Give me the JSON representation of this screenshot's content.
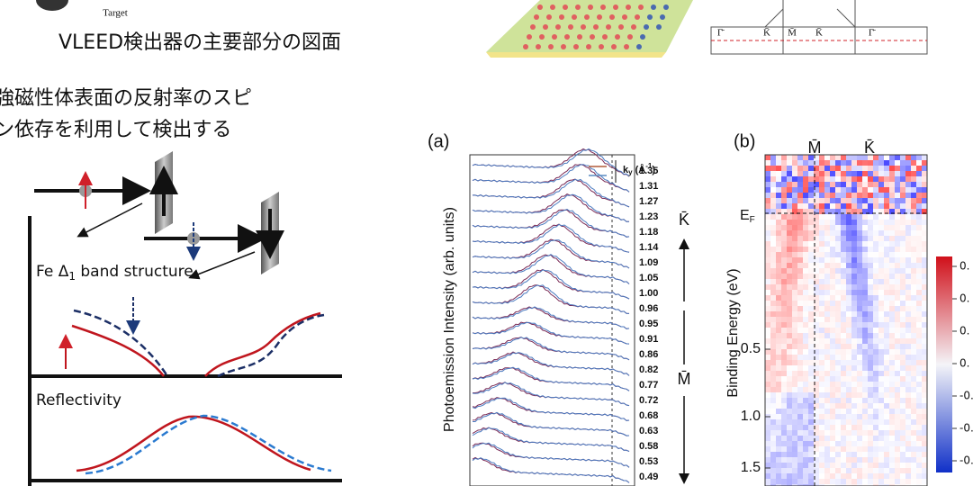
{
  "left": {
    "target_label": "Target",
    "caption": "VLEED検出器の主要部分の図面",
    "description": [
      "強磁性体表面の反射率のスピ",
      "ン依存を利用して検出する"
    ],
    "band_label": {
      "main": "Fe Δ",
      "sub": "1",
      "rest": " band structure"
    },
    "reflectivity_label": "Reflectivity"
  },
  "top_figure": {
    "labels": [
      "Γ̄",
      "K̄",
      "M̄",
      "K̄",
      "Γ̄"
    ]
  },
  "panel_a": {
    "tag": "(a)",
    "y_label": "Photoemission Intensity (arb. units)",
    "legend": {
      "k": "k",
      "sub": "y",
      "unit": " (Å",
      "sup": "-1",
      "close": ")"
    },
    "ky_values": [
      "1.35",
      "1.31",
      "1.27",
      "1.23",
      "1.18",
      "1.14",
      "1.09",
      "1.05",
      "1.00",
      "0.96",
      "0.95",
      "0.91",
      "0.86",
      "0.82",
      "0.77",
      "0.72",
      "0.68",
      "0.63",
      "0.58",
      "0.53",
      "0.49"
    ],
    "k_label": "K̄",
    "m_label": "M̄"
  },
  "panel_b": {
    "tag": "(b)",
    "m_label": "M̄",
    "k_label": "K̄",
    "ef": "E",
    "ef_sub": "F",
    "y_label": "Binding Energy (eV)",
    "yticks": [
      "0.5",
      "1.0",
      "1.5"
    ],
    "colorbar_labels": [
      "0.",
      "0.",
      "0.",
      "0.",
      "-0.",
      "-0.",
      "-0."
    ]
  }
}
